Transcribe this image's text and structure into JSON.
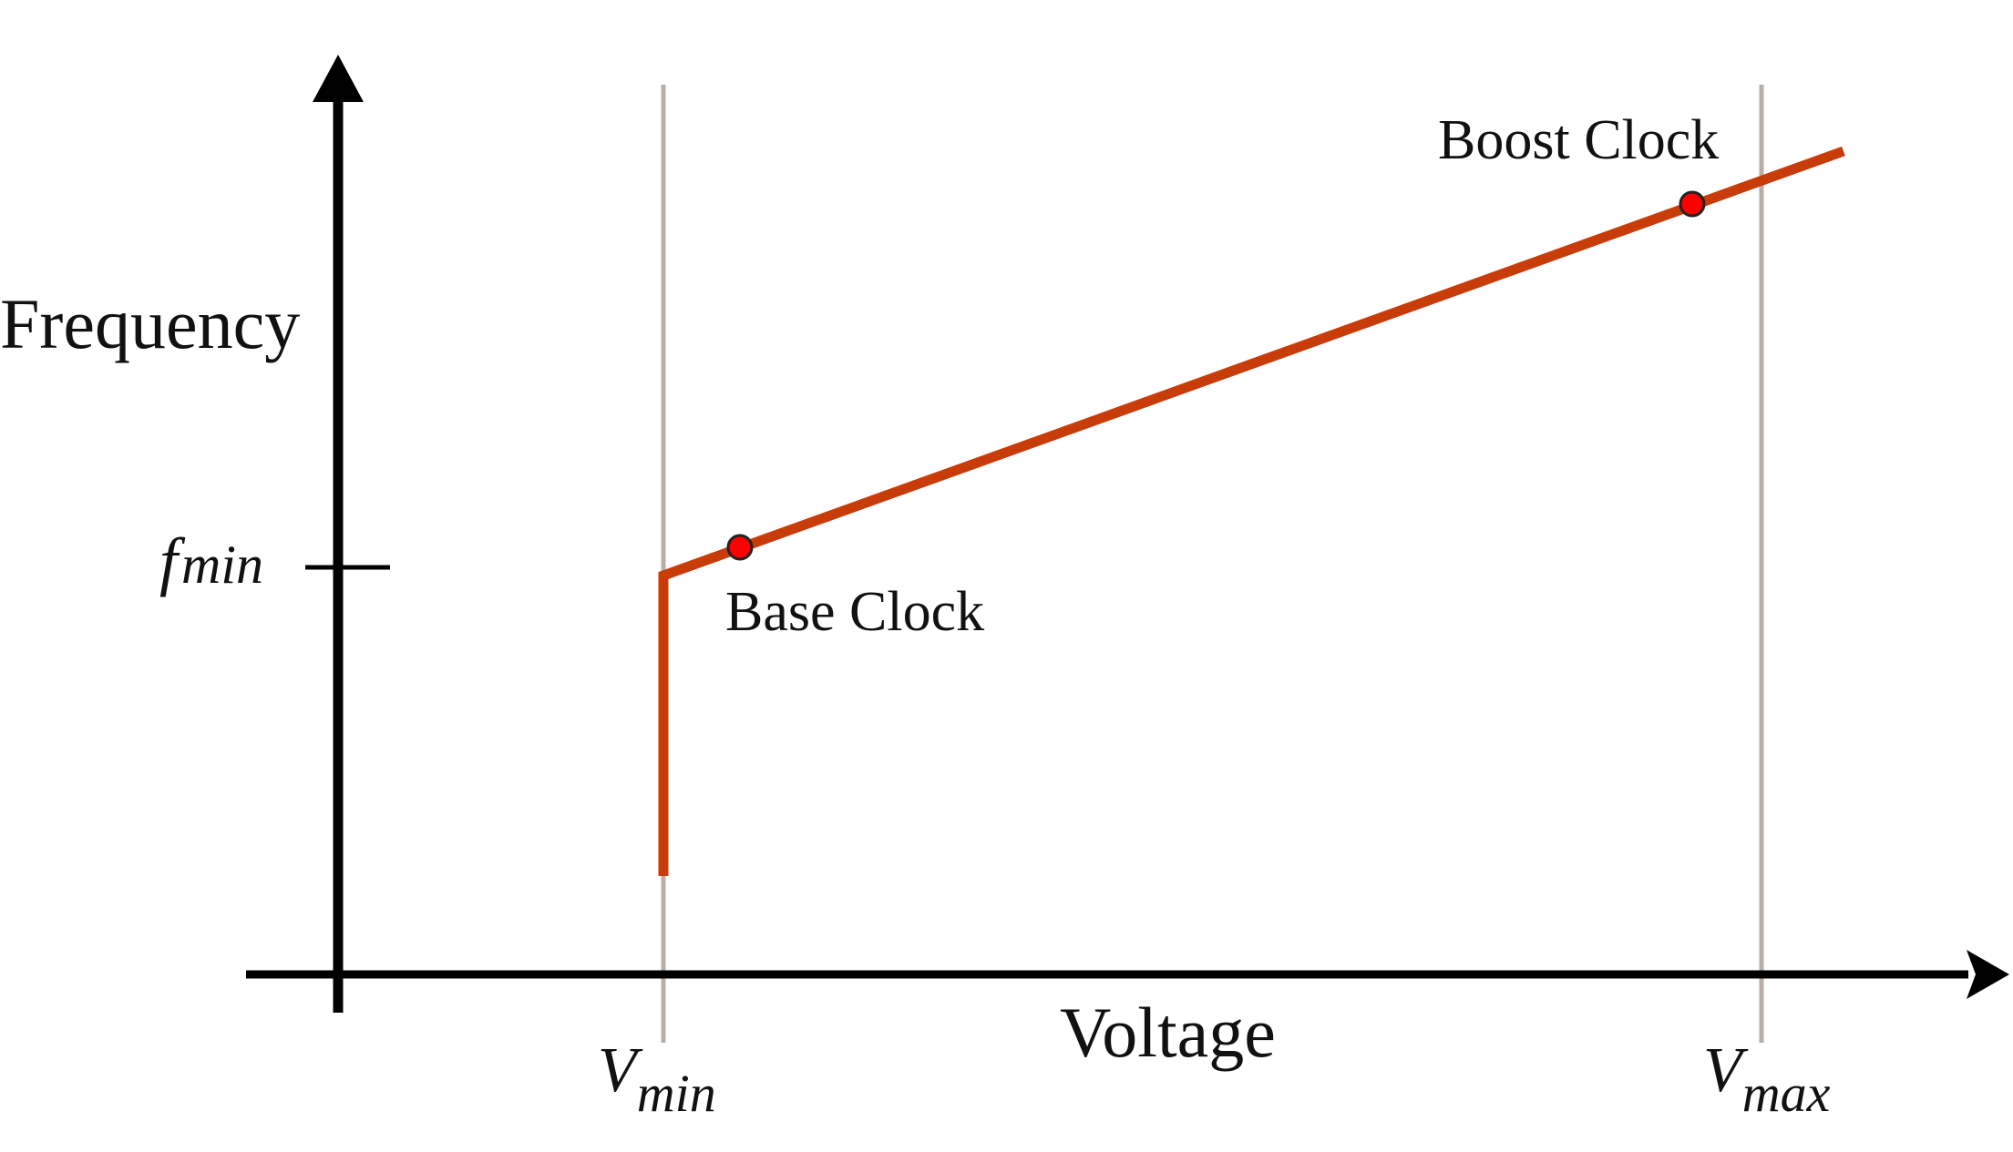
{
  "diagram": {
    "y_axis_label": "Frequency",
    "x_axis_label": "Voltage",
    "f_min": {
      "symbol": "f",
      "subscript": "min"
    },
    "v_min": {
      "symbol": "V",
      "subscript": "min"
    },
    "v_max": {
      "symbol": "V",
      "subscript": "max"
    },
    "base_clock_label": "Base Clock",
    "boost_clock_label": "Boost Clock"
  },
  "colors": {
    "curve": "#c83c0a",
    "point_fill": "#ff0000",
    "point_stroke": "#222222",
    "axis": "#000000",
    "guide": "#b8aea6"
  }
}
